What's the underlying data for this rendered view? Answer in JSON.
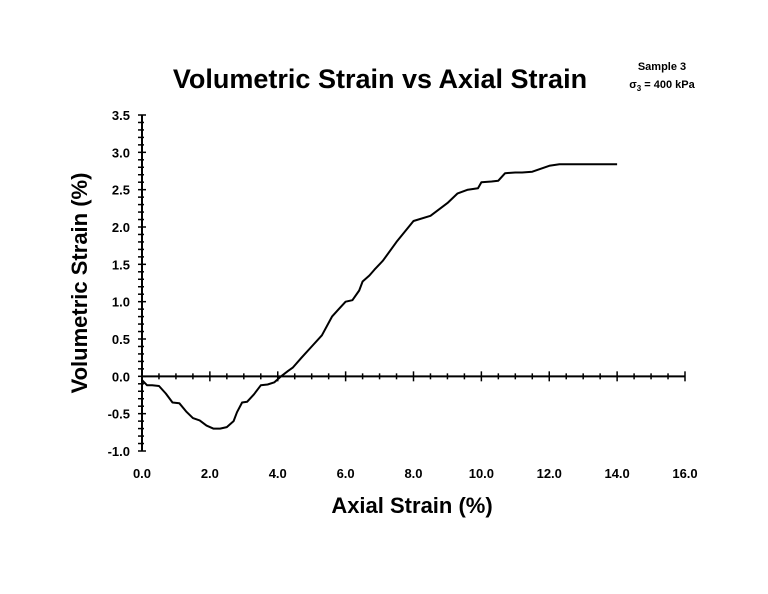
{
  "chart_data": {
    "type": "line",
    "title": "Volumetric Strain vs Axial Strain",
    "xlabel": "Axial Strain (%)",
    "ylabel": "Volumetric Strain (%)",
    "annotation": {
      "line1": "Sample 3",
      "line2_symbol": "σ",
      "line2_sub": "3",
      "line2_rest": " = 400 kPa"
    },
    "xlim": [
      0,
      16
    ],
    "ylim": [
      -1.0,
      3.5
    ],
    "xticks": [
      "0.0",
      "2.0",
      "4.0",
      "6.0",
      "8.0",
      "10.0",
      "12.0",
      "14.0",
      "16.0"
    ],
    "yticks": [
      "-1.0",
      "-0.5",
      "0.0",
      "0.5",
      "1.0",
      "1.5",
      "2.0",
      "2.5",
      "3.0",
      "3.5"
    ],
    "grid": false,
    "legend": "none",
    "series": [
      {
        "x": [
          0.0,
          0.15,
          0.3,
          0.5,
          0.7,
          0.9,
          1.1,
          1.3,
          1.5,
          1.7,
          1.9,
          2.1,
          2.3,
          2.5,
          2.7,
          2.8,
          2.95,
          3.1,
          3.3,
          3.5,
          3.7,
          3.9,
          4.1,
          4.3,
          4.45,
          4.7,
          5.0,
          5.3,
          5.6,
          5.8,
          6.0,
          6.2,
          6.4,
          6.5,
          6.7,
          6.85,
          7.1,
          7.5,
          8.0,
          8.5,
          9.0,
          9.3,
          9.6,
          9.9,
          10.0,
          10.3,
          10.5,
          10.7,
          11.0,
          11.2,
          11.5,
          12.0,
          12.3,
          12.5,
          12.7,
          13.0,
          14.0
        ],
        "y": [
          -0.05,
          -0.12,
          -0.12,
          -0.13,
          -0.23,
          -0.35,
          -0.36,
          -0.47,
          -0.56,
          -0.59,
          -0.66,
          -0.7,
          -0.7,
          -0.68,
          -0.6,
          -0.48,
          -0.35,
          -0.34,
          -0.24,
          -0.12,
          -0.11,
          -0.08,
          0.0,
          0.07,
          0.12,
          0.25,
          0.4,
          0.55,
          0.8,
          0.9,
          1.0,
          1.02,
          1.15,
          1.27,
          1.35,
          1.43,
          1.55,
          1.8,
          2.08,
          2.15,
          2.32,
          2.45,
          2.5,
          2.52,
          2.6,
          2.61,
          2.62,
          2.72,
          2.73,
          2.73,
          2.74,
          2.82,
          2.84,
          2.84,
          2.84,
          2.84,
          2.84
        ]
      }
    ]
  }
}
